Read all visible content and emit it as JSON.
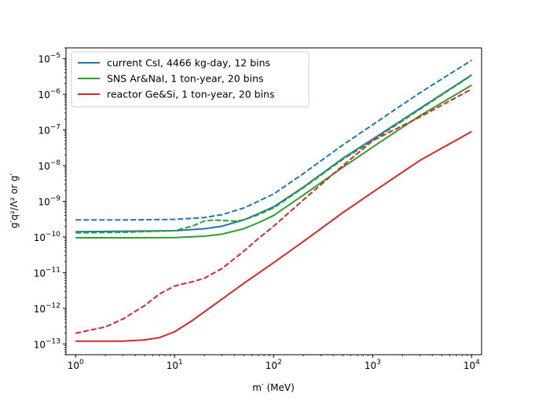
{
  "chart_data": {
    "type": "line",
    "title": "",
    "xlabel": "m′ (MeV)",
    "ylabel": "g′q²/Λ² or g′",
    "xscale": "log",
    "yscale": "log",
    "xlim": [
      0.8,
      12589
    ],
    "ylim": [
      5e-14,
      2e-05
    ],
    "x_ticks": [
      {
        "value": 1,
        "base": "10",
        "exp": "0"
      },
      {
        "value": 10,
        "base": "10",
        "exp": "1"
      },
      {
        "value": 100,
        "base": "10",
        "exp": "2"
      },
      {
        "value": 1000,
        "base": "10",
        "exp": "3"
      },
      {
        "value": 10000,
        "base": "10",
        "exp": "4"
      }
    ],
    "y_ticks": [
      {
        "value": 1e-13,
        "base": "10",
        "exp": "−13"
      },
      {
        "value": 1e-12,
        "base": "10",
        "exp": "−12"
      },
      {
        "value": 1e-11,
        "base": "10",
        "exp": "−11"
      },
      {
        "value": 1e-10,
        "base": "10",
        "exp": "−10"
      },
      {
        "value": 1e-09,
        "base": "10",
        "exp": "−9"
      },
      {
        "value": 1e-08,
        "base": "10",
        "exp": "−8"
      },
      {
        "value": 1e-07,
        "base": "10",
        "exp": "−7"
      },
      {
        "value": 1e-06,
        "base": "10",
        "exp": "−6"
      },
      {
        "value": 1e-05,
        "base": "10",
        "exp": "−5"
      }
    ],
    "legend_position": "top-left",
    "series": [
      {
        "name": "current CsI, 4466 kg-day, 12 bins",
        "color": "#1f77b4",
        "style": "solid",
        "in_legend": true,
        "x": [
          1,
          3,
          10,
          20,
          30,
          50,
          70,
          100,
          200,
          500,
          1000,
          3000,
          10000
        ],
        "y": [
          1.4e-10,
          1.45e-10,
          1.5e-10,
          1.7e-10,
          2e-10,
          3e-10,
          4.5e-10,
          7e-10,
          2.5e-09,
          1.6e-08,
          5.5e-08,
          4e-07,
          3.5e-06
        ]
      },
      {
        "name": "current CsI dashed",
        "color": "#1f77b4",
        "style": "dashed",
        "in_legend": false,
        "x": [
          1,
          3,
          10,
          20,
          30,
          50,
          70,
          100,
          200,
          500,
          1000,
          3000,
          10000
        ],
        "y": [
          3e-10,
          3e-10,
          3.1e-10,
          3.5e-10,
          4.2e-10,
          6.5e-10,
          1e-09,
          1.6e-09,
          6e-09,
          3.8e-08,
          1.4e-07,
          1.1e-06,
          9e-06
        ]
      },
      {
        "name": "SNS Ar&NaI, 1 ton-year, 20 bins",
        "color": "#2ca02c",
        "style": "solid",
        "in_legend": true,
        "x": [
          1,
          3,
          10,
          20,
          30,
          50,
          70,
          100,
          200,
          500,
          1000,
          3000,
          10000
        ],
        "y": [
          9.5e-11,
          9.5e-11,
          9.6e-11,
          1.05e-10,
          1.2e-10,
          1.7e-10,
          2.5e-10,
          4e-10,
          1.5e-09,
          9e-09,
          3.3e-08,
          2.5e-07,
          1.8e-06
        ]
      },
      {
        "name": "SNS Ar&NaI dashed",
        "color": "#2ca02c",
        "style": "dashed",
        "in_legend": false,
        "x": [
          1,
          3,
          10,
          15,
          20,
          25,
          30,
          40,
          50,
          70,
          100,
          200,
          500,
          1000,
          3000,
          10000
        ],
        "y": [
          1.3e-10,
          1.35e-10,
          1.5e-10,
          2e-10,
          2.8e-10,
          3e-10,
          2.9e-10,
          2.8e-10,
          3e-10,
          4.2e-10,
          6.5e-10,
          2.4e-09,
          1.5e-08,
          5e-08,
          3.8e-07,
          3.4e-06
        ]
      },
      {
        "name": "reactor Ge&Si, 1 ton-year, 20 bins",
        "color": "#d62728",
        "style": "solid",
        "in_legend": true,
        "x": [
          1,
          3,
          5,
          7,
          10,
          15,
          20,
          30,
          50,
          100,
          200,
          500,
          1000,
          3000,
          10000
        ],
        "y": [
          1.2e-13,
          1.2e-13,
          1.3e-13,
          1.5e-13,
          2.2e-13,
          4.5e-13,
          8e-13,
          1.8e-12,
          5e-12,
          1.9e-11,
          7.5e-11,
          4.8e-10,
          1.8e-09,
          1.4e-08,
          9e-08
        ]
      },
      {
        "name": "reactor Ge&Si dashed",
        "color": "#d62728",
        "style": "dashed",
        "in_legend": false,
        "x": [
          1,
          2,
          3,
          5,
          7,
          10,
          12,
          15,
          20,
          30,
          50,
          70,
          100,
          200,
          500,
          1000,
          3000,
          10000
        ],
        "y": [
          2e-13,
          3e-13,
          5e-13,
          1.2e-12,
          2.5e-12,
          4.2e-12,
          4.8e-12,
          5.5e-12,
          7e-12,
          1.3e-11,
          4e-11,
          9e-11,
          2e-10,
          1.1e-09,
          1e-08,
          5e-08,
          2.3e-07,
          1.4e-06
        ]
      }
    ]
  }
}
